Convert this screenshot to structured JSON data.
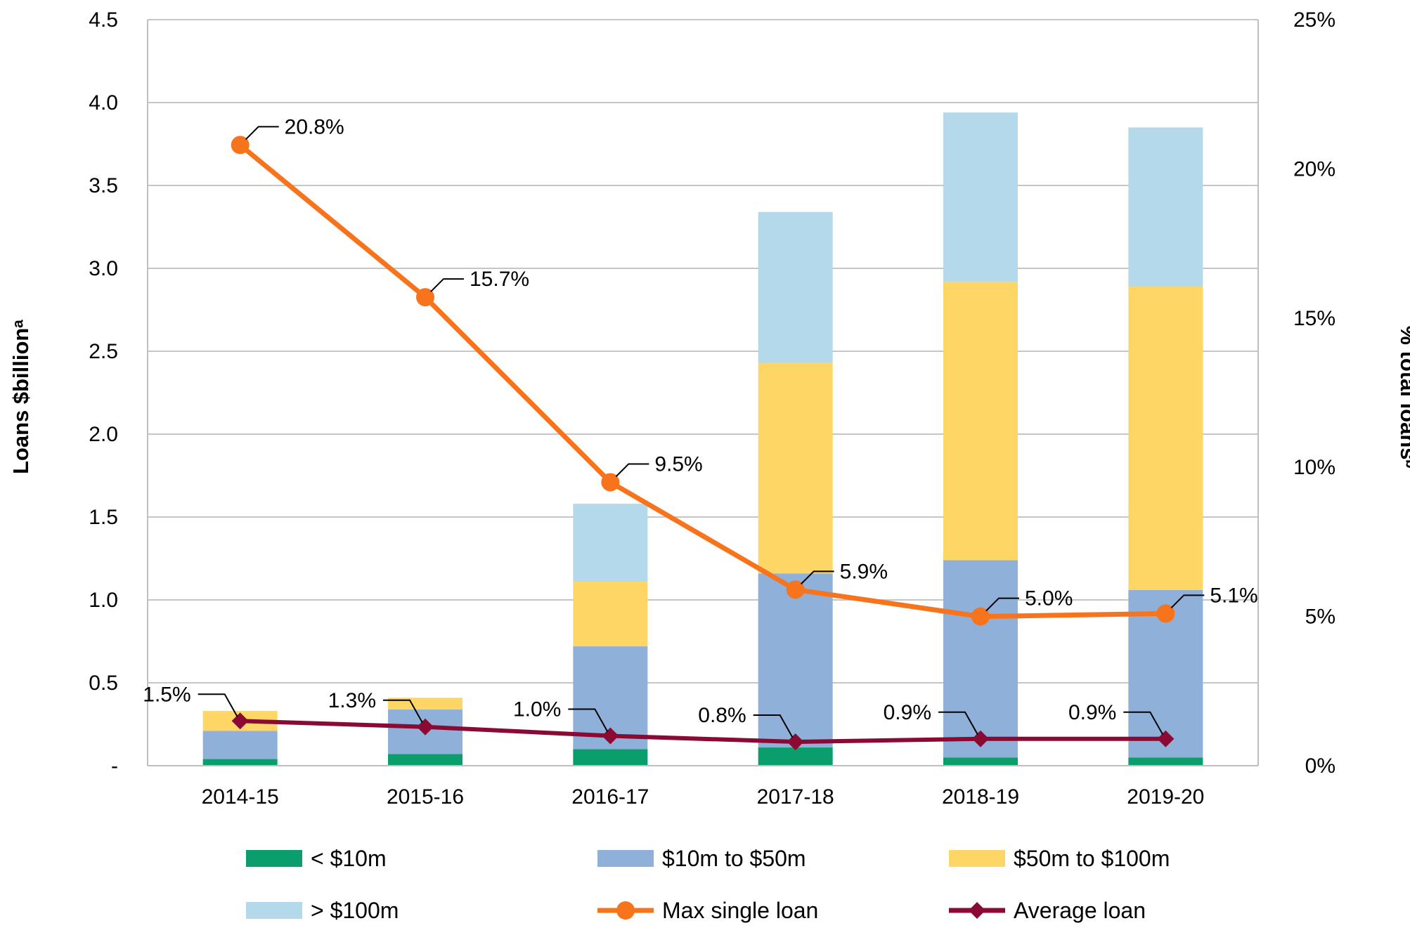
{
  "chart_data": {
    "type": "bar",
    "stacked": true,
    "categories": [
      "2014-15",
      "2015-16",
      "2016-17",
      "2017-18",
      "2018-19",
      "2019-20"
    ],
    "series": [
      {
        "name": "< $10m",
        "axis": "left",
        "color": "#0a9e6c",
        "values": [
          0.04,
          0.07,
          0.1,
          0.11,
          0.05,
          0.05
        ]
      },
      {
        "name": "$10m to $50m",
        "axis": "left",
        "color": "#8fb0d9",
        "values": [
          0.17,
          0.27,
          0.62,
          1.05,
          1.19,
          1.01
        ]
      },
      {
        "name": "$50m to $100m",
        "axis": "left",
        "color": "#fdd666",
        "values": [
          0.12,
          0.07,
          0.39,
          1.27,
          1.68,
          1.83
        ]
      },
      {
        "name": "> $100m",
        "axis": "left",
        "color": "#b4d9eb",
        "values": [
          0.0,
          0.0,
          0.47,
          0.91,
          1.02,
          0.96
        ]
      }
    ],
    "lines": [
      {
        "name": "Max single loan",
        "axis": "right",
        "color": "#f7741d",
        "marker": "circle",
        "values": [
          20.8,
          15.7,
          9.5,
          5.9,
          5.0,
          5.1
        ],
        "labels": [
          "20.8%",
          "15.7%",
          "9.5%",
          "5.9%",
          "5.0%",
          "5.1%"
        ]
      },
      {
        "name": "Average loan",
        "axis": "right",
        "color": "#8b0a33",
        "marker": "diamond",
        "values": [
          1.5,
          1.3,
          1.0,
          0.8,
          0.9,
          0.9
        ],
        "labels": [
          "1.5%",
          "1.3%",
          "1.0%",
          "0.8%",
          "0.9%",
          "0.9%"
        ]
      }
    ],
    "ylabel": "Loans $billionᵃ",
    "y2label": "% total loansᵇ",
    "ylim": [
      0,
      4.5
    ],
    "y2lim": [
      0,
      25
    ],
    "yticks": [
      0,
      0.5,
      1.0,
      1.5,
      2.0,
      2.5,
      3.0,
      3.5,
      4.0,
      4.5
    ],
    "yticklabels": [
      "-",
      "0.5",
      "1.0",
      "1.5",
      "2.0",
      "2.5",
      "3.0",
      "3.5",
      "4.0",
      "4.5"
    ],
    "y2ticks": [
      0,
      5,
      10,
      15,
      20,
      25
    ],
    "y2ticklabels": [
      "0%",
      "5%",
      "10%",
      "15%",
      "20%",
      "25%"
    ],
    "grid": true,
    "legend_position": "bottom",
    "legend": [
      {
        "label": "< $10m",
        "kind": "bar",
        "color": "#0a9e6c"
      },
      {
        "label": "$10m to $50m",
        "kind": "bar",
        "color": "#8fb0d9"
      },
      {
        "label": "$50m to $100m",
        "kind": "bar",
        "color": "#fdd666"
      },
      {
        "label": "> $100m",
        "kind": "bar",
        "color": "#b4d9eb"
      },
      {
        "label": "Max single loan",
        "kind": "line-circle",
        "color": "#f7741d"
      },
      {
        "label": "Average loan",
        "kind": "line-diamond",
        "color": "#8b0a33"
      }
    ]
  }
}
